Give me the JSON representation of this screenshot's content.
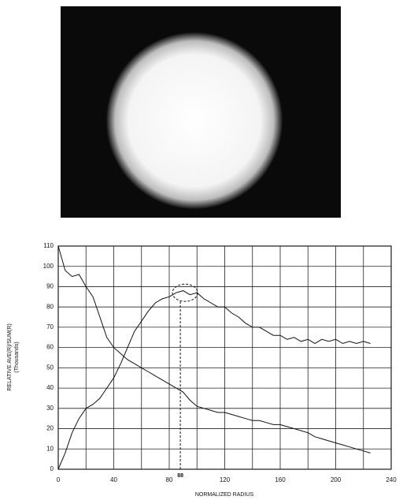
{
  "chart_data": {
    "type": "line",
    "xlabel": "NORMALIZED RADIUS",
    "ylabel": "RELATIVE AVE(R)/SUM(R)",
    "ylabel_sub": "(Thousands)",
    "x": [
      0,
      5,
      10,
      15,
      20,
      25,
      30,
      35,
      40,
      45,
      50,
      55,
      60,
      65,
      70,
      75,
      80,
      85,
      90,
      95,
      100,
      105,
      110,
      115,
      120,
      125,
      130,
      135,
      140,
      145,
      150,
      155,
      160,
      165,
      170,
      175,
      180,
      185,
      190,
      195,
      200,
      205,
      210,
      215,
      220,
      225
    ],
    "series": [
      {
        "color": "#111111",
        "values": [
          110,
          98,
          95,
          96,
          90,
          85,
          75,
          65,
          60,
          57,
          54,
          52,
          50,
          48,
          46,
          44,
          42,
          40,
          38,
          34,
          31,
          30,
          29,
          28,
          28,
          27,
          26,
          25,
          24,
          24,
          23,
          22,
          22,
          21,
          20,
          19,
          18,
          16,
          15,
          14,
          13,
          12,
          11,
          10,
          9,
          8
        ]
      },
      {
        "color": "#111111",
        "values": [
          0,
          8,
          18,
          25,
          30,
          32,
          35,
          40,
          45,
          52,
          60,
          68,
          73,
          78,
          82,
          84,
          85,
          87,
          88,
          86,
          87,
          84,
          82,
          80,
          80,
          77,
          75,
          72,
          70,
          70,
          68,
          66,
          66,
          64,
          65,
          63,
          64,
          62,
          64,
          63,
          64,
          62,
          63,
          62,
          63,
          62
        ]
      }
    ],
    "annotation": {
      "text": "88",
      "x": 88,
      "y": 87
    },
    "xlim": [
      0,
      240
    ],
    "xticks": [
      0,
      40,
      80,
      120,
      160,
      200,
      240
    ],
    "xgrid_minor": [
      20,
      60,
      100,
      140,
      180,
      220
    ],
    "ylim": [
      0,
      110
    ],
    "yticks": [
      0,
      10,
      20,
      30,
      40,
      50,
      60,
      70,
      80,
      90,
      100,
      110
    ],
    "grid": true
  }
}
